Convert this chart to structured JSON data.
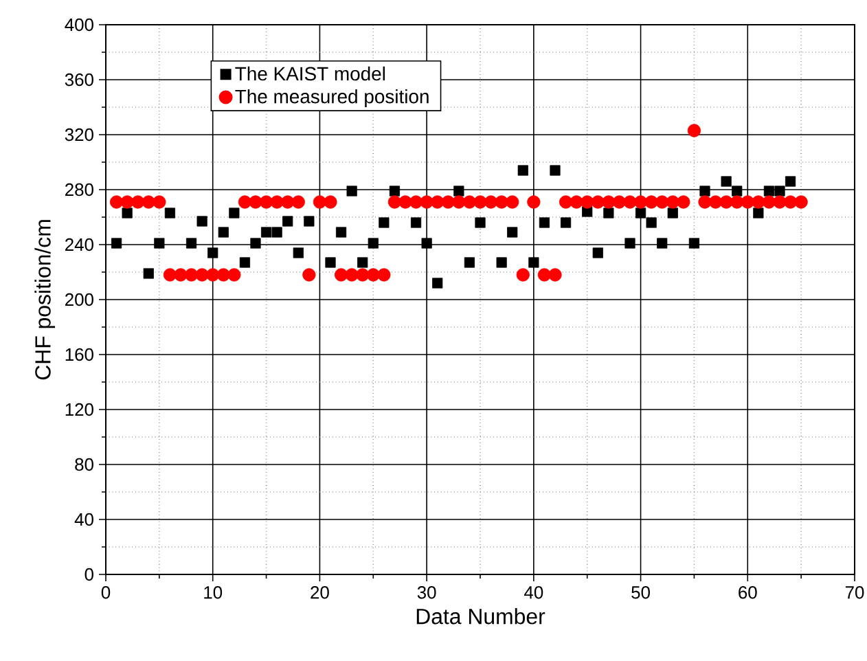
{
  "chart_data": {
    "type": "scatter",
    "xlabel": "Data Number",
    "ylabel": "CHF position/cm",
    "xlim": [
      0,
      70
    ],
    "ylim": [
      0,
      400
    ],
    "xticks": [
      0,
      10,
      20,
      30,
      40,
      50,
      60,
      70
    ],
    "yticks": [
      0,
      40,
      80,
      120,
      160,
      200,
      240,
      280,
      320,
      360,
      400
    ],
    "grid": true,
    "legend": "top left",
    "x": [
      1,
      2,
      3,
      4,
      5,
      6,
      7,
      8,
      9,
      10,
      11,
      12,
      13,
      14,
      15,
      16,
      17,
      18,
      19,
      20,
      21,
      22,
      23,
      24,
      25,
      26,
      27,
      28,
      29,
      30,
      31,
      32,
      33,
      34,
      35,
      36,
      37,
      38,
      39,
      40,
      41,
      42,
      43,
      44,
      45,
      46,
      47,
      48,
      49,
      50,
      51,
      52,
      53,
      54,
      55,
      56,
      57,
      58,
      59,
      60,
      61,
      62,
      63,
      64,
      65
    ],
    "series": [
      {
        "name": "The KAIST model",
        "color": "#000000",
        "marker": "square",
        "values": [
          241,
          263,
          null,
          219,
          241,
          263,
          null,
          241,
          257,
          234,
          249,
          263,
          227,
          241,
          249,
          249,
          257,
          234,
          257,
          null,
          227,
          249,
          279,
          227,
          241,
          256,
          279,
          null,
          256,
          241,
          212,
          null,
          279,
          227,
          256,
          null,
          227,
          249,
          294,
          227,
          256,
          294,
          256,
          null,
          264,
          234,
          263,
          null,
          241,
          263,
          256,
          241,
          263,
          null,
          241,
          279,
          null,
          286,
          279,
          null,
          263,
          279,
          279,
          286,
          null
        ]
      },
      {
        "name": "The measured position",
        "color": "#ff0000",
        "marker": "circle",
        "values": [
          271,
          271,
          271,
          271,
          271,
          218,
          218,
          218,
          218,
          218,
          218,
          218,
          271,
          271,
          271,
          271,
          271,
          271,
          218,
          271,
          271,
          218,
          218,
          218,
          218,
          218,
          271,
          271,
          271,
          271,
          271,
          271,
          271,
          271,
          271,
          271,
          271,
          271,
          218,
          271,
          218,
          218,
          271,
          271,
          271,
          271,
          271,
          271,
          271,
          271,
          271,
          271,
          271,
          271,
          323,
          271,
          271,
          271,
          271,
          271,
          271,
          271,
          271,
          271,
          271
        ]
      }
    ]
  }
}
